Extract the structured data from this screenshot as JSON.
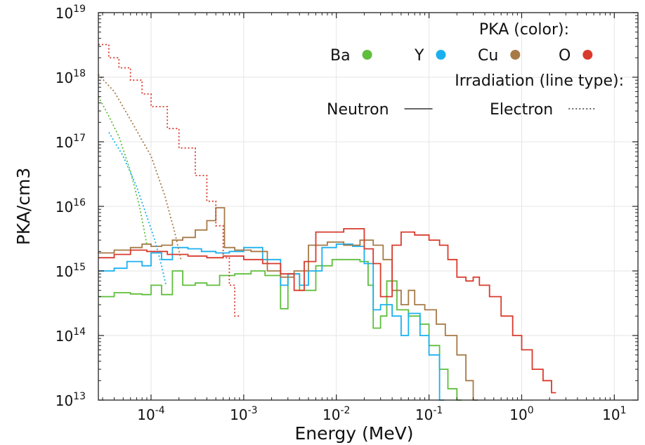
{
  "chart_data": {
    "type": "line",
    "title": "",
    "xlabel": "Energy (MeV)",
    "ylabel": "PKA/cm3",
    "xscale": "log",
    "yscale": "log",
    "xlim": [
      2.7e-05,
      18
    ],
    "ylim": [
      10000000000000.0,
      1e+19
    ],
    "grid": true,
    "x_ticks": [
      {
        "base": "10",
        "exp": "-4",
        "value": 0.0001
      },
      {
        "base": "10",
        "exp": "-3",
        "value": 0.001
      },
      {
        "base": "10",
        "exp": "-2",
        "value": 0.01
      },
      {
        "base": "10",
        "exp": "-1",
        "value": 0.1
      },
      {
        "base": "10",
        "exp": "0",
        "value": 1
      },
      {
        "base": "10",
        "exp": "1",
        "value": 10
      }
    ],
    "y_ticks": [
      {
        "base": "10",
        "exp": "13",
        "value": 10000000000000.0
      },
      {
        "base": "10",
        "exp": "14",
        "value": 100000000000000.0
      },
      {
        "base": "10",
        "exp": "15",
        "value": 1000000000000000.0
      },
      {
        "base": "10",
        "exp": "16",
        "value": 1e+16
      },
      {
        "base": "10",
        "exp": "17",
        "value": 1e+17
      },
      {
        "base": "10",
        "exp": "18",
        "value": 1e+18
      },
      {
        "base": "10",
        "exp": "19",
        "value": 1e+19
      }
    ],
    "legend": {
      "placement": "top-right",
      "color_title": "PKA (color):",
      "line_title": "Irradiation (line type):",
      "species": [
        {
          "label": "Ba",
          "color": "#5fbe3c"
        },
        {
          "label": "Y",
          "color": "#1ab0f0"
        },
        {
          "label": "Cu",
          "color": "#a67a47"
        },
        {
          "label": "O",
          "color": "#d93a2c"
        }
      ],
      "line_types": [
        {
          "label": "Neutron",
          "style": "solid"
        },
        {
          "label": "Electron",
          "style": "dotted"
        }
      ]
    },
    "series": [
      {
        "pka": "Ba",
        "irradiation": "Neutron",
        "color": "#5fbe3c",
        "style": "solid",
        "step": true,
        "points": [
          [
            2.7e-05,
            400000000000000.0
          ],
          [
            4e-05,
            460000000000000.0
          ],
          [
            6e-05,
            440000000000000.0
          ],
          [
            8e-05,
            430000000000000.0
          ],
          [
            0.0001,
            600000000000000.0
          ],
          [
            0.00013,
            430000000000000.0
          ],
          [
            0.00017,
            1000000000000000.0
          ],
          [
            0.00022,
            600000000000000.0
          ],
          [
            0.0003,
            650000000000000.0
          ],
          [
            0.0004,
            600000000000000.0
          ],
          [
            0.00055,
            850000000000000.0
          ],
          [
            0.0008,
            900000000000000.0
          ],
          [
            0.0012,
            1000000000000000.0
          ],
          [
            0.0017,
            850000000000000.0
          ],
          [
            0.0025,
            260000000000000.0
          ],
          [
            0.003,
            900000000000000.0
          ],
          [
            0.004,
            500000000000000.0
          ],
          [
            0.006,
            1200000000000000.0
          ],
          [
            0.009,
            1500000000000000.0
          ],
          [
            0.012,
            1500000000000000.0
          ],
          [
            0.018,
            1400000000000000.0
          ],
          [
            0.022,
            600000000000000.0
          ],
          [
            0.025,
            130000000000000.0
          ],
          [
            0.03,
            200000000000000.0
          ],
          [
            0.035,
            700000000000000.0
          ],
          [
            0.045,
            250000000000000.0
          ],
          [
            0.06,
            200000000000000.0
          ],
          [
            0.08,
            150000000000000.0
          ],
          [
            0.1,
            70000000000000.0
          ],
          [
            0.13,
            30000000000000.0
          ],
          [
            0.16,
            15000000000000.0
          ],
          [
            0.2,
            10000000000000.0
          ]
        ]
      },
      {
        "pka": "Y",
        "irradiation": "Neutron",
        "color": "#1ab0f0",
        "style": "solid",
        "step": true,
        "points": [
          [
            2.7e-05,
            1000000000000000.0
          ],
          [
            4e-05,
            1100000000000000.0
          ],
          [
            5.5e-05,
            1400000000000000.0
          ],
          [
            8e-05,
            1200000000000000.0
          ],
          [
            0.0001,
            1900000000000000.0
          ],
          [
            0.00013,
            1500000000000000.0
          ],
          [
            0.00017,
            2300000000000000.0
          ],
          [
            0.00025,
            2200000000000000.0
          ],
          [
            0.00035,
            2000000000000000.0
          ],
          [
            0.0005,
            1900000000000000.0
          ],
          [
            0.0007,
            2000000000000000.0
          ],
          [
            0.001,
            2300000000000000.0
          ],
          [
            0.0016,
            1500000000000000.0
          ],
          [
            0.0025,
            600000000000000.0
          ],
          [
            0.003,
            900000000000000.0
          ],
          [
            0.004,
            600000000000000.0
          ],
          [
            0.005,
            1000000000000000.0
          ],
          [
            0.007,
            2300000000000000.0
          ],
          [
            0.01,
            2600000000000000.0
          ],
          [
            0.015,
            2400000000000000.0
          ],
          [
            0.02,
            1300000000000000.0
          ],
          [
            0.025,
            250000000000000.0
          ],
          [
            0.03,
            300000000000000.0
          ],
          [
            0.04,
            200000000000000.0
          ],
          [
            0.05,
            100000000000000.0
          ],
          [
            0.06,
            220000000000000.0
          ],
          [
            0.08,
            100000000000000.0
          ],
          [
            0.1,
            50000000000000.0
          ],
          [
            0.13,
            10000000000000.0
          ]
        ]
      },
      {
        "pka": "Cu",
        "irradiation": "Neutron",
        "color": "#a67a47",
        "style": "solid",
        "step": true,
        "points": [
          [
            2.7e-05,
            1900000000000000.0
          ],
          [
            4e-05,
            2100000000000000.0
          ],
          [
            6e-05,
            2300000000000000.0
          ],
          [
            8e-05,
            2600000000000000.0
          ],
          [
            0.0001,
            2400000000000000.0
          ],
          [
            0.00013,
            2500000000000000.0
          ],
          [
            0.00017,
            3000000000000000.0
          ],
          [
            0.00022,
            3300000000000000.0
          ],
          [
            0.0003,
            4300000000000000.0
          ],
          [
            0.0004,
            6000000000000000.0
          ],
          [
            0.0005,
            9500000000000000.0
          ],
          [
            0.00062,
            2300000000000000.0
          ],
          [
            0.0008,
            2100000000000000.0
          ],
          [
            0.0012,
            2000000000000000.0
          ],
          [
            0.0018,
            1000000000000000.0
          ],
          [
            0.0025,
            800000000000000.0
          ],
          [
            0.0035,
            1000000000000000.0
          ],
          [
            0.005,
            2500000000000000.0
          ],
          [
            0.008,
            2800000000000000.0
          ],
          [
            0.012,
            2500000000000000.0
          ],
          [
            0.018,
            3000000000000000.0
          ],
          [
            0.025,
            2500000000000000.0
          ],
          [
            0.032,
            1500000000000000.0
          ],
          [
            0.04,
            500000000000000.0
          ],
          [
            0.05,
            300000000000000.0
          ],
          [
            0.06,
            500000000000000.0
          ],
          [
            0.07,
            300000000000000.0
          ],
          [
            0.09,
            250000000000000.0
          ],
          [
            0.12,
            150000000000000.0
          ],
          [
            0.15,
            100000000000000.0
          ],
          [
            0.2,
            50000000000000.0
          ],
          [
            0.25,
            20000000000000.0
          ],
          [
            0.3,
            10000000000000.0
          ]
        ]
      },
      {
        "pka": "O",
        "irradiation": "Neutron",
        "color": "#d93a2c",
        "style": "solid",
        "step": true,
        "points": [
          [
            2.7e-05,
            1600000000000000.0
          ],
          [
            4e-05,
            1800000000000000.0
          ],
          [
            6e-05,
            2100000000000000.0
          ],
          [
            9e-05,
            2000000000000000.0
          ],
          [
            0.00015,
            1800000000000000.0
          ],
          [
            0.00025,
            1700000000000000.0
          ],
          [
            0.0004,
            1600000000000000.0
          ],
          [
            0.0006,
            1700000000000000.0
          ],
          [
            0.001,
            1500000000000000.0
          ],
          [
            0.0016,
            1300000000000000.0
          ],
          [
            0.0025,
            900000000000000.0
          ],
          [
            0.0035,
            500000000000000.0
          ],
          [
            0.0045,
            1400000000000000.0
          ],
          [
            0.006,
            4000000000000000.0
          ],
          [
            0.012,
            4500000000000000.0
          ],
          [
            0.02,
            2200000000000000.0
          ],
          [
            0.025,
            1300000000000000.0
          ],
          [
            0.03,
            400000000000000.0
          ],
          [
            0.04,
            2500000000000000.0
          ],
          [
            0.05,
            4000000000000000.0
          ],
          [
            0.07,
            3600000000000000.0
          ],
          [
            0.1,
            3000000000000000.0
          ],
          [
            0.13,
            2500000000000000.0
          ],
          [
            0.16,
            1500000000000000.0
          ],
          [
            0.2,
            800000000000000.0
          ],
          [
            0.25,
            700000000000000.0
          ],
          [
            0.3,
            800000000000000.0
          ],
          [
            0.35,
            600000000000000.0
          ],
          [
            0.45,
            400000000000000.0
          ],
          [
            0.6,
            200000000000000.0
          ],
          [
            0.8,
            100000000000000.0
          ],
          [
            1.0,
            60000000000000.0
          ],
          [
            1.3,
            30000000000000.0
          ],
          [
            1.7,
            20000000000000.0
          ],
          [
            2.1,
            13000000000000.0
          ]
        ]
      },
      {
        "pka": "Ba",
        "irradiation": "Electron",
        "color": "#5fbe3c",
        "style": "dotted",
        "step": false,
        "points": [
          [
            2.7e-05,
            5e+17
          ],
          [
            3.5e-05,
            2.5e+17
          ],
          [
            4.5e-05,
            1.2e+17
          ],
          [
            6e-05,
            3.5e+16
          ],
          [
            7.5e-05,
            1e+16
          ],
          [
            8.5e-05,
            4000000000000000.0
          ],
          [
            9e-05,
            2500000000000000.0
          ]
        ]
      },
      {
        "pka": "Y",
        "irradiation": "Electron",
        "color": "#1ab0f0",
        "style": "dotted",
        "step": false,
        "points": [
          [
            3.5e-05,
            1.4e+17
          ],
          [
            5e-05,
            6e+16
          ],
          [
            7e-05,
            2e+16
          ],
          [
            9e-05,
            7000000000000000.0
          ],
          [
            0.00011,
            3000000000000000.0
          ],
          [
            0.00013,
            1200000000000000.0
          ],
          [
            0.000145,
            600000000000000.0
          ]
        ]
      },
      {
        "pka": "Cu",
        "irradiation": "Electron",
        "color": "#a67a47",
        "style": "dotted",
        "step": false,
        "points": [
          [
            2.7e-05,
            1.1e+18
          ],
          [
            4e-05,
            6e+17
          ],
          [
            6e-05,
            2.2e+17
          ],
          [
            0.0001,
            6e+16
          ],
          [
            0.00014,
            1.5e+16
          ],
          [
            0.00018,
            4000000000000000.0
          ],
          [
            0.00021,
            1500000000000000.0
          ]
        ]
      },
      {
        "pka": "O",
        "irradiation": "Electron",
        "color": "#d93a2c",
        "style": "dotted",
        "step": true,
        "points": [
          [
            2.7e-05,
            3.2e+18
          ],
          [
            3.5e-05,
            2e+18
          ],
          [
            4.5e-05,
            1.4e+18
          ],
          [
            6e-05,
            9e+17
          ],
          [
            8e-05,
            5.5e+17
          ],
          [
            0.0001,
            3.5e+17
          ],
          [
            0.00015,
            1.6e+17
          ],
          [
            0.0002,
            8e+16
          ],
          [
            0.0003,
            3e+16
          ],
          [
            0.0004,
            1.2e+16
          ],
          [
            0.0005,
            5000000000000000.0
          ],
          [
            0.0006,
            1600000000000000.0
          ],
          [
            0.0007,
            600000000000000.0
          ],
          [
            0.0008,
            200000000000000.0
          ]
        ]
      }
    ]
  }
}
